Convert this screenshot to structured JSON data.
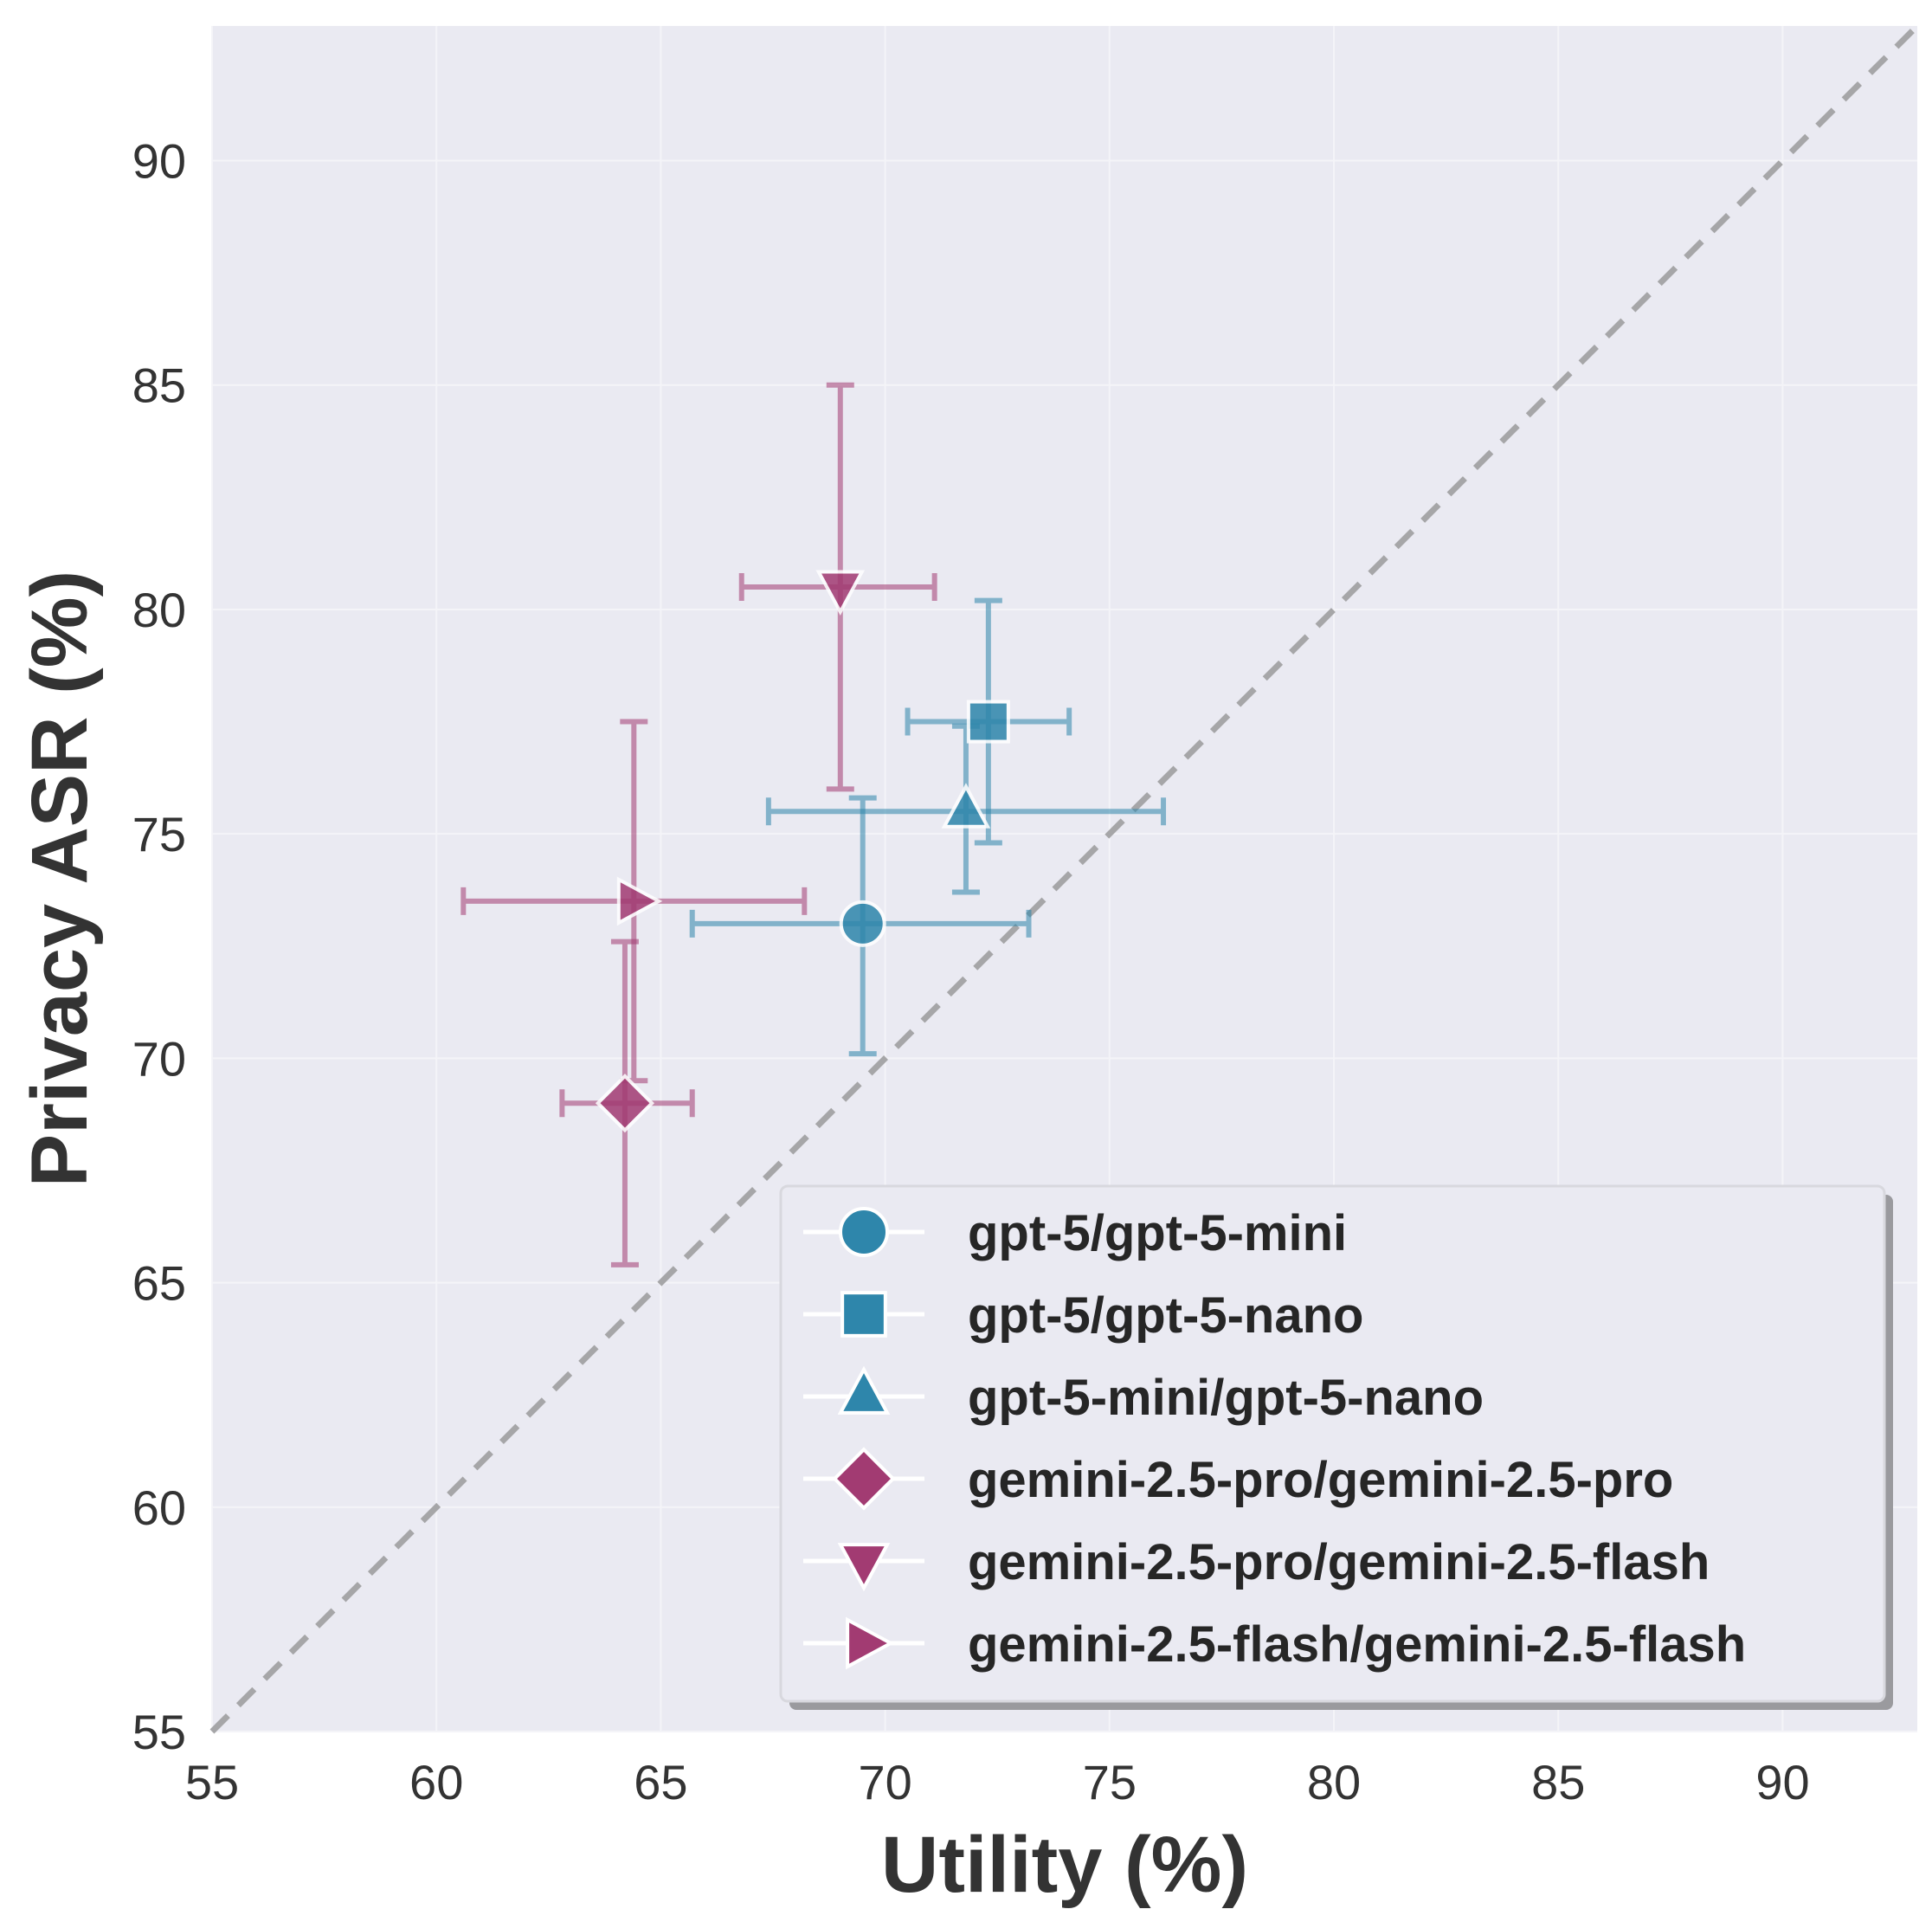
{
  "chart_data": {
    "type": "scatter",
    "title": "",
    "xlabel": "Utility (%)",
    "ylabel": "Privacy ASR (%)",
    "xlim": [
      55,
      93
    ],
    "ylim": [
      55,
      93
    ],
    "xticks": [
      55,
      60,
      65,
      70,
      75,
      80,
      85,
      90
    ],
    "yticks": [
      55,
      60,
      65,
      70,
      75,
      80,
      85,
      90
    ],
    "grid": true,
    "diagonal": "y = x (dashed)",
    "legend_position": "lower-right",
    "colors": {
      "gpt": "#2e86ab",
      "gemini": "#a23b72",
      "diagonal": "#a6a6a8",
      "plot_bg": "#eaeaf2"
    },
    "series": [
      {
        "name": "gpt-5/gpt-5-mini",
        "marker": "circle",
        "color": "#2e86ab",
        "x": 69.5,
        "y": 73.0,
        "xerr": [
          65.7,
          73.2
        ],
        "yerr": [
          70.1,
          75.8
        ]
      },
      {
        "name": "gpt-5/gpt-5-nano",
        "marker": "square",
        "color": "#2e86ab",
        "x": 72.3,
        "y": 77.5,
        "xerr": [
          70.5,
          74.1
        ],
        "yerr": [
          74.8,
          80.2
        ]
      },
      {
        "name": "gpt-5-mini/gpt-5-nano",
        "marker": "triangle-up",
        "color": "#2e86ab",
        "x": 71.8,
        "y": 75.5,
        "xerr": [
          67.4,
          76.2
        ],
        "yerr": [
          73.7,
          77.4
        ]
      },
      {
        "name": "gemini-2.5-pro/gemini-2.5-pro",
        "marker": "diamond",
        "color": "#a23b72",
        "x": 64.2,
        "y": 69.0,
        "xerr": [
          62.8,
          65.7
        ],
        "yerr": [
          65.4,
          72.6
        ]
      },
      {
        "name": "gemini-2.5-pro/gemini-2.5-flash",
        "marker": "triangle-down",
        "color": "#a23b72",
        "x": 69.0,
        "y": 80.5,
        "xerr": [
          66.8,
          71.1
        ],
        "yerr": [
          76.0,
          85.0
        ]
      },
      {
        "name": "gemini-2.5-flash/gemini-2.5-flash",
        "marker": "triangle-right",
        "color": "#a23b72",
        "x": 64.4,
        "y": 73.5,
        "xerr": [
          60.6,
          68.2
        ],
        "yerr": [
          69.5,
          77.5
        ]
      }
    ]
  }
}
